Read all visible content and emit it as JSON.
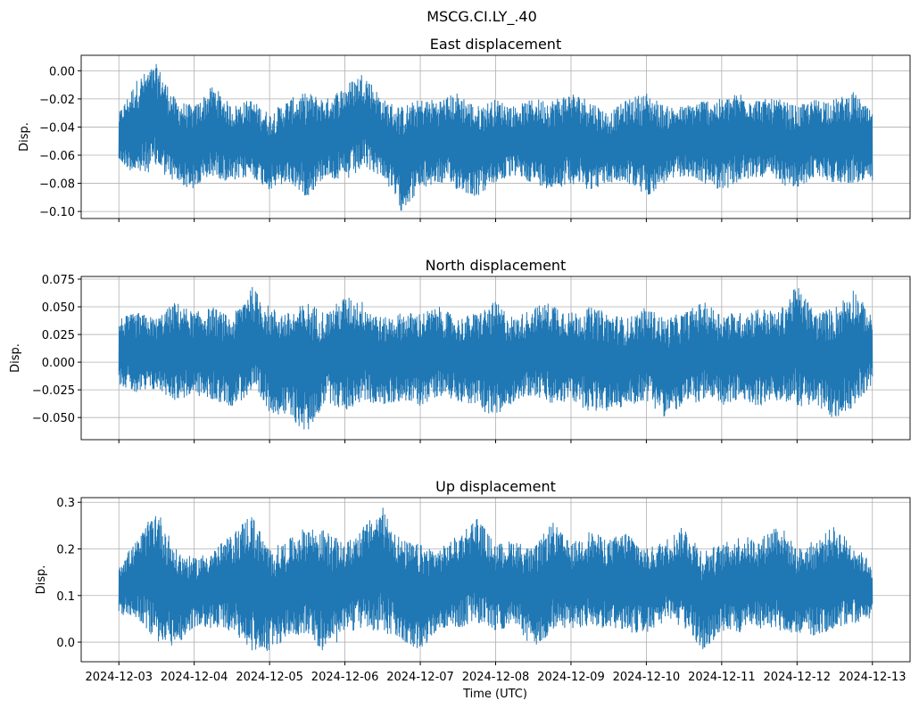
{
  "chart_data": {
    "type": "line",
    "suptitle": "MSCG.CI.LY_.40",
    "xlabel": "Time (UTC)",
    "x_ticks": [
      "2024-12-03",
      "2024-12-04",
      "2024-12-05",
      "2024-12-06",
      "2024-12-07",
      "2024-12-08",
      "2024-12-09",
      "2024-12-10",
      "2024-12-11",
      "2024-12-12",
      "2024-12-13"
    ],
    "x_range_days": [
      -0.5,
      10.5
    ],
    "color": "#1f77b4",
    "envelope_step_days": 0.25,
    "panels": [
      {
        "title": "East displacement",
        "ylabel": "Disp.",
        "ylim": [
          -0.105,
          0.011
        ],
        "y_ticks": [
          0.0,
          -0.02,
          -0.04,
          -0.06,
          -0.08,
          -0.1
        ],
        "y_tick_labels": [
          "0.00",
          "−0.02",
          "−0.04",
          "−0.06",
          "−0.08",
          "−0.10"
        ],
        "upper": [
          -0.03,
          -0.005,
          0.005,
          -0.02,
          -0.025,
          -0.01,
          -0.025,
          -0.02,
          -0.03,
          -0.02,
          -0.015,
          -0.02,
          -0.01,
          0.0,
          -0.02,
          -0.025,
          -0.02,
          -0.02,
          -0.015,
          -0.025,
          -0.02,
          -0.025,
          -0.02,
          -0.02,
          -0.015,
          -0.02,
          -0.03,
          -0.02,
          -0.015,
          -0.025,
          -0.025,
          -0.02,
          -0.02,
          -0.015,
          -0.02,
          -0.02,
          -0.025,
          -0.02,
          -0.02,
          -0.015,
          -0.03
        ],
        "lower": [
          -0.065,
          -0.075,
          -0.07,
          -0.08,
          -0.085,
          -0.075,
          -0.08,
          -0.075,
          -0.085,
          -0.08,
          -0.09,
          -0.075,
          -0.08,
          -0.07,
          -0.075,
          -0.1,
          -0.085,
          -0.08,
          -0.085,
          -0.09,
          -0.08,
          -0.075,
          -0.08,
          -0.085,
          -0.08,
          -0.085,
          -0.08,
          -0.08,
          -0.09,
          -0.08,
          -0.075,
          -0.08,
          -0.085,
          -0.08,
          -0.075,
          -0.08,
          -0.085,
          -0.075,
          -0.08,
          -0.08,
          -0.08
        ]
      },
      {
        "title": "North displacement",
        "ylabel": "Disp.",
        "ylim": [
          -0.07,
          0.0774
        ],
        "y_ticks": [
          0.075,
          0.05,
          0.025,
          0.0,
          -0.025,
          -0.05
        ],
        "y_tick_labels": [
          "0.075",
          "0.050",
          "0.025",
          "0.000",
          "−0.025",
          "−0.050"
        ],
        "upper": [
          0.04,
          0.045,
          0.04,
          0.055,
          0.045,
          0.05,
          0.04,
          0.07,
          0.05,
          0.045,
          0.055,
          0.045,
          0.06,
          0.055,
          0.04,
          0.045,
          0.045,
          0.05,
          0.04,
          0.045,
          0.055,
          0.04,
          0.05,
          0.055,
          0.045,
          0.05,
          0.045,
          0.04,
          0.05,
          0.04,
          0.045,
          0.055,
          0.045,
          0.045,
          0.05,
          0.045,
          0.07,
          0.045,
          0.05,
          0.068,
          0.04
        ],
        "lower": [
          -0.02,
          -0.03,
          -0.025,
          -0.035,
          -0.03,
          -0.035,
          -0.04,
          -0.03,
          -0.045,
          -0.05,
          -0.065,
          -0.035,
          -0.045,
          -0.035,
          -0.04,
          -0.035,
          -0.04,
          -0.03,
          -0.035,
          -0.04,
          -0.052,
          -0.035,
          -0.03,
          -0.04,
          -0.035,
          -0.045,
          -0.045,
          -0.04,
          -0.035,
          -0.05,
          -0.04,
          -0.035,
          -0.04,
          -0.035,
          -0.04,
          -0.035,
          -0.04,
          -0.04,
          -0.053,
          -0.04,
          -0.02
        ]
      },
      {
        "title": "Up displacement",
        "ylabel": "Disp.",
        "ylim": [
          -0.042,
          0.31
        ],
        "y_ticks": [
          0.3,
          0.2,
          0.1,
          0.0
        ],
        "y_tick_labels": [
          "0.3",
          "0.2",
          "0.1",
          "0.0"
        ],
        "upper": [
          0.17,
          0.22,
          0.29,
          0.2,
          0.18,
          0.2,
          0.23,
          0.28,
          0.2,
          0.22,
          0.25,
          0.24,
          0.21,
          0.25,
          0.29,
          0.22,
          0.21,
          0.2,
          0.23,
          0.27,
          0.21,
          0.22,
          0.2,
          0.26,
          0.21,
          0.24,
          0.22,
          0.24,
          0.2,
          0.22,
          0.25,
          0.2,
          0.21,
          0.23,
          0.22,
          0.26,
          0.2,
          0.22,
          0.25,
          0.21,
          0.17
        ],
        "lower": [
          0.06,
          0.05,
          0.0,
          -0.01,
          0.03,
          0.03,
          0.02,
          -0.02,
          -0.02,
          0.01,
          0.02,
          -0.03,
          0.02,
          0.03,
          0.02,
          0.0,
          -0.02,
          0.03,
          0.03,
          0.04,
          0.02,
          0.04,
          -0.02,
          0.02,
          0.03,
          0.03,
          0.03,
          0.02,
          0.02,
          0.04,
          0.03,
          -0.02,
          0.02,
          0.02,
          0.03,
          0.02,
          0.02,
          0.01,
          0.03,
          0.04,
          0.05
        ]
      }
    ]
  }
}
